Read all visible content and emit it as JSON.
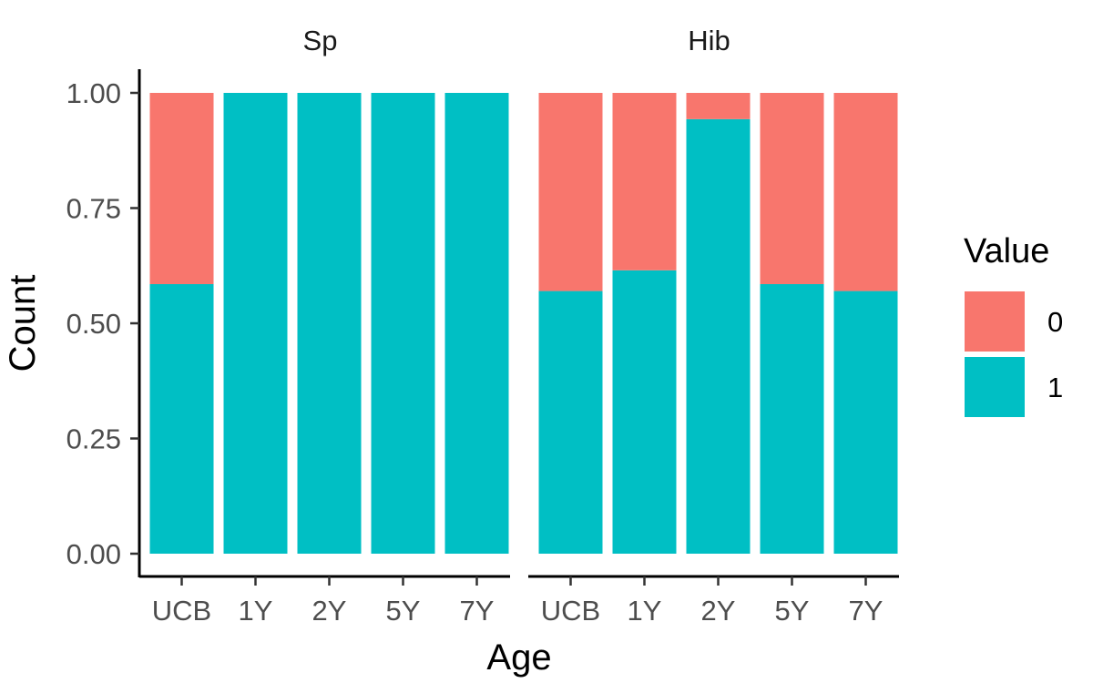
{
  "chart_data": {
    "type": "bar",
    "stacked": true,
    "facets": [
      {
        "title": "Sp",
        "categories": [
          "UCB",
          "1Y",
          "2Y",
          "5Y",
          "7Y"
        ],
        "series": [
          {
            "name": "0",
            "values": [
              0.415,
              0.0,
              0.0,
              0.0,
              0.0
            ]
          },
          {
            "name": "1",
            "values": [
              0.585,
              1.0,
              1.0,
              1.0,
              1.0
            ]
          }
        ]
      },
      {
        "title": "Hib",
        "categories": [
          "UCB",
          "1Y",
          "2Y",
          "5Y",
          "7Y"
        ],
        "series": [
          {
            "name": "0",
            "values": [
              0.43,
              0.385,
              0.057,
              0.415,
              0.43
            ]
          },
          {
            "name": "1",
            "values": [
              0.57,
              0.615,
              0.943,
              0.585,
              0.57
            ]
          }
        ]
      }
    ],
    "xlabel": "Age",
    "ylabel": "Count",
    "ylim": [
      0,
      1
    ],
    "yticks": [
      "0.00",
      "0.25",
      "0.50",
      "0.75",
      "1.00"
    ],
    "legend": {
      "title": "Value",
      "position": "right",
      "entries": [
        "0",
        "1"
      ]
    },
    "colors": {
      "0": "#F8766D",
      "1": "#00BFC4"
    },
    "grid": false
  }
}
